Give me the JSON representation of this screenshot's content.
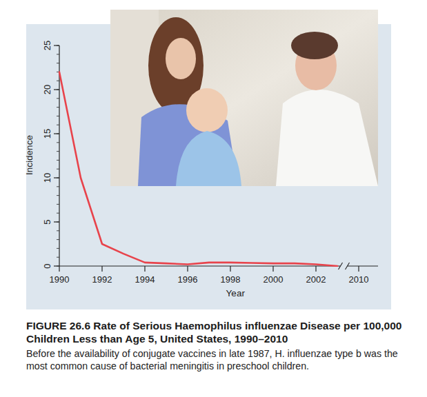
{
  "chart_data": {
    "type": "line",
    "title": "FIGURE 26.6 Rate of Serious Haemophilus influenzae Disease per 100,000 Children Less than Age 5, United States, 1990–2010",
    "subtitle": "Before the availability of conjugate vaccines in late 1987, H. influenzae type b was the most common cause of bacterial meningitis in preschool children.",
    "x_label": "Year",
    "y_label": "Incidence",
    "categories": [
      "1990",
      null,
      "1992",
      null,
      "1994",
      null,
      "1996",
      null,
      "1998",
      null,
      "2000",
      null,
      "2002",
      null,
      "2010"
    ],
    "values": [
      22,
      10,
      2.5,
      1.4,
      0.4,
      0.3,
      0.2,
      0.4,
      0.4,
      0.35,
      0.3,
      0.3,
      0.2,
      0,
      null
    ],
    "color": "#e8434b",
    "ylim": [
      0,
      25
    ],
    "yticks": [
      0,
      5,
      10,
      15,
      20,
      25
    ],
    "grid": false
  }
}
